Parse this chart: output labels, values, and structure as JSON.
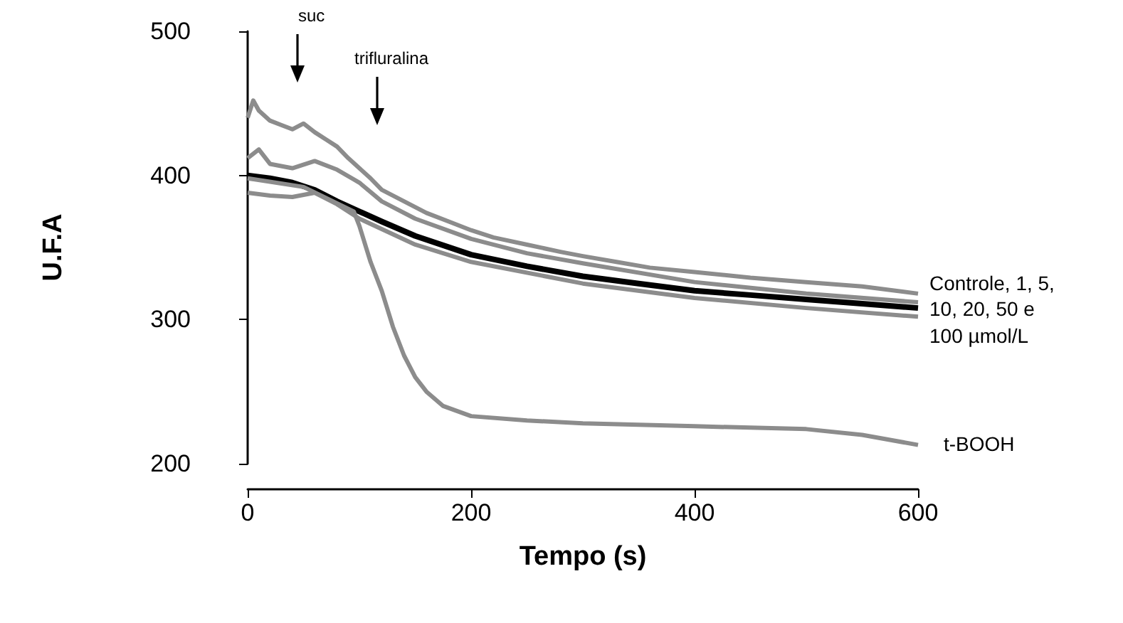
{
  "chart_data": {
    "type": "line",
    "xlabel": "Tempo (s)",
    "ylabel": "U.F.A",
    "xlim": [
      0,
      600
    ],
    "xticks": [
      0,
      200,
      400,
      600
    ],
    "ylim": [
      200,
      500
    ],
    "yticks": [
      200,
      300,
      400,
      500
    ],
    "grid": false,
    "marker": "none",
    "line_style": "solid",
    "series": [
      {
        "color": "#8c8c8c",
        "x": [
          0,
          5,
          10,
          20,
          30,
          40,
          50,
          60,
          70,
          80,
          90,
          100,
          110,
          120,
          140,
          160,
          180,
          200,
          220,
          250,
          280,
          300,
          330,
          360,
          400,
          450,
          500,
          550,
          600
        ],
        "values": [
          440,
          452,
          445,
          438,
          435,
          432,
          436,
          430,
          425,
          420,
          412,
          405,
          398,
          390,
          382,
          374,
          368,
          362,
          357,
          352,
          347,
          344,
          340,
          336,
          333,
          329,
          326,
          323,
          318
        ]
      },
      {
        "color": "#8c8c8c",
        "x": [
          0,
          10,
          20,
          40,
          60,
          80,
          100,
          120,
          150,
          200,
          250,
          300,
          400,
          500,
          600
        ],
        "values": [
          412,
          418,
          408,
          405,
          410,
          404,
          395,
          382,
          370,
          356,
          346,
          339,
          326,
          318,
          312
        ]
      },
      {
        "color": "#8c8c8c",
        "x": [
          0,
          20,
          40,
          60,
          80,
          100,
          150,
          200,
          300,
          400,
          500,
          600
        ],
        "values": [
          388,
          386,
          385,
          388,
          380,
          370,
          352,
          340,
          325,
          315,
          308,
          302
        ]
      },
      {
        "color": "#000000",
        "x": [
          0,
          20,
          40,
          60,
          80,
          100,
          120,
          150,
          200,
          250,
          300,
          350,
          400,
          450,
          500,
          550,
          600
        ],
        "values": [
          400,
          398,
          395,
          390,
          382,
          375,
          368,
          358,
          345,
          337,
          330,
          325,
          320,
          317,
          314,
          311,
          308
        ]
      },
      {
        "color": "#8c8c8c",
        "x": [
          0,
          50,
          95,
          100,
          110,
          120,
          130,
          140,
          150,
          160,
          175,
          200,
          250,
          300,
          350,
          400,
          450,
          500,
          550,
          600
        ],
        "values": [
          398,
          392,
          375,
          365,
          340,
          320,
          295,
          275,
          260,
          250,
          240,
          233,
          230,
          228,
          227,
          226,
          225,
          224,
          220,
          213
        ]
      }
    ],
    "annotations": [
      "suc",
      "trifluralina",
      {
        "text": "Controle, 1, 5, 10, 20, 50 e 100 µmol/L",
        "x": 600,
        "y": 310
      },
      {
        "text": "t-BOOH",
        "x": 600,
        "y": 213
      }
    ]
  }
}
